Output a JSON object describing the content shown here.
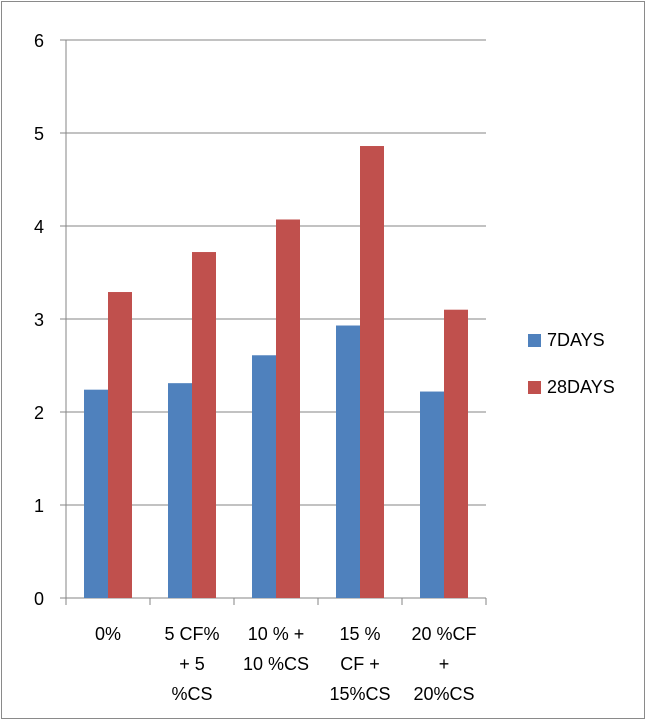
{
  "chart_data": {
    "type": "bar",
    "title": "",
    "xlabel": "",
    "ylabel": "",
    "ylim": [
      0,
      6
    ],
    "yticks": [
      0,
      1,
      2,
      3,
      4,
      5,
      6
    ],
    "grid": true,
    "legend_position": "right",
    "categories": [
      [
        "0%"
      ],
      [
        "5 CF%",
        "+ 5",
        "%CS"
      ],
      [
        "10 % +",
        "10 %CS"
      ],
      [
        "15 %",
        "CF +",
        "15%CS"
      ],
      [
        "20 %CF",
        "+",
        "20%CS"
      ]
    ],
    "series": [
      {
        "name": "7DAYS",
        "color": "#4f81bd",
        "values": [
          2.24,
          2.31,
          2.61,
          2.93,
          2.22
        ]
      },
      {
        "name": "28DAYS",
        "color": "#c0504d",
        "values": [
          3.29,
          3.72,
          4.07,
          4.86,
          3.1
        ]
      }
    ]
  }
}
